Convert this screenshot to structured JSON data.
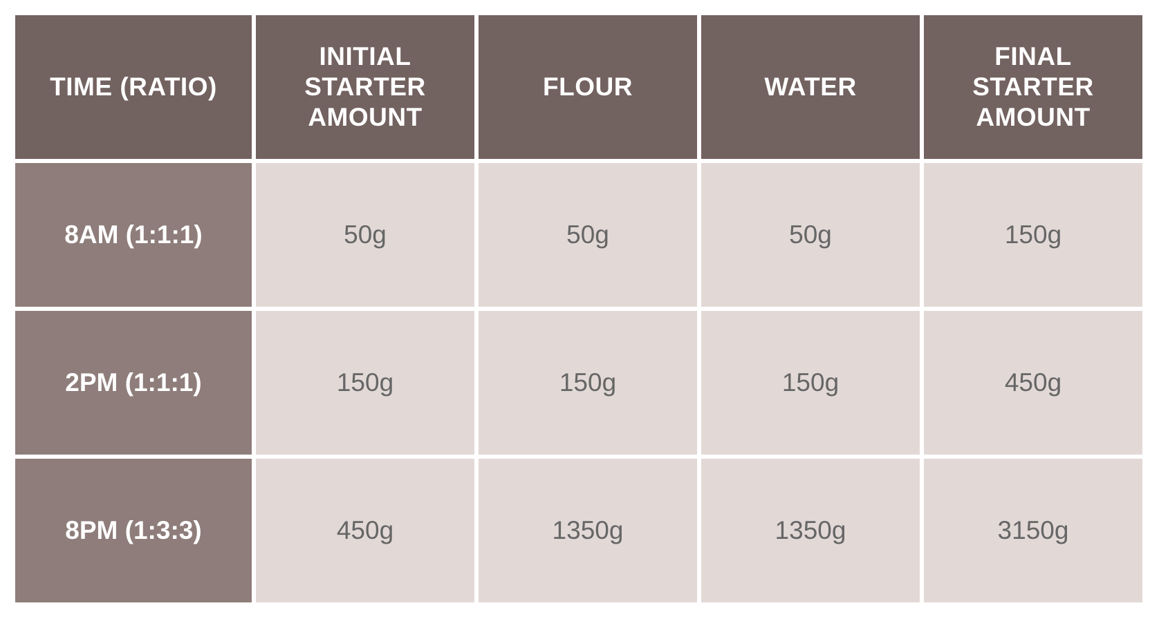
{
  "colors": {
    "header_bg": "#726260",
    "row_header_bg": "#8e7d7a",
    "cell_bg": "#e2d9d7",
    "cell_text": "#666666"
  },
  "table": {
    "headers": [
      "TIME (RATIO)",
      "INITIAL STARTER AMOUNT",
      "FLOUR",
      "WATER",
      "FINAL STARTER AMOUNT"
    ],
    "rows": [
      [
        "8AM (1:1:1)",
        "50g",
        "50g",
        "50g",
        "150g"
      ],
      [
        "2PM (1:1:1)",
        "150g",
        "150g",
        "150g",
        "450g"
      ],
      [
        "8PM (1:3:3)",
        "450g",
        "1350g",
        "1350g",
        "3150g"
      ]
    ]
  }
}
